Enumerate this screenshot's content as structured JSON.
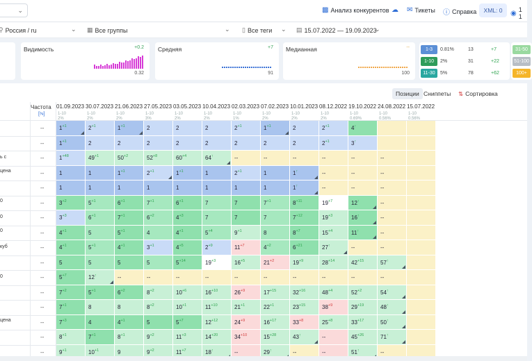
{
  "topbar": {
    "competitor_label": "Анализ конкурентов",
    "tickets_label": "Тикеты",
    "help_label": "Справка",
    "xml_label": "XML: 0",
    "balance_label": "1 1"
  },
  "filters": {
    "region": "Россия / ru",
    "groups": "Все группы",
    "tags": "Все теги",
    "date_range": "15.07.2022 — 19.09.2023"
  },
  "metrics": [
    {
      "title": "Видимость",
      "delta": "+0.2",
      "value": "0.32"
    },
    {
      "title": "Средняя",
      "delta": "+7",
      "value": "91"
    },
    {
      "title": "Медианная",
      "delta": "--",
      "value": "100"
    }
  ],
  "tops": [
    {
      "label": "1-3",
      "pct": "0.81%",
      "count": "13",
      "delta": "+7",
      "color": "#5b8fd6"
    },
    {
      "label": "1-10",
      "pct": "2%",
      "count": "31",
      "delta": "+22",
      "color": "#2e9c5a"
    },
    {
      "label": "11-30",
      "pct": "5%",
      "count": "78",
      "delta": "+62",
      "color": "#2aa7a0"
    }
  ],
  "tops_side": [
    "31-50",
    "51-100",
    "100+"
  ],
  "toolbar": {
    "positions": "Позиции",
    "snippets": "Сниппеты",
    "sort": "Сортировка запросов"
  },
  "table": {
    "freq_header": "Частота",
    "freq_sub": "[!ч]",
    "dates": [
      {
        "d": "01.09.2023",
        "s": [
          "1-10",
          "2%"
        ]
      },
      {
        "d": "30.07.2023",
        "s": [
          "1-10",
          "2%"
        ]
      },
      {
        "d": "21.06.2023",
        "s": [
          "1-10",
          "2%"
        ]
      },
      {
        "d": "27.05.2023",
        "s": [
          "1-10",
          "3%"
        ]
      },
      {
        "d": "03.05.2023",
        "s": [
          "1-10",
          "2%"
        ]
      },
      {
        "d": "10.04.2023",
        "s": [
          "1-10",
          "2%"
        ]
      },
      {
        "d": "02.03.2023",
        "s": [
          "1-10",
          "1%"
        ]
      },
      {
        "d": "07.02.2023",
        "s": [
          "1-10",
          "2%"
        ]
      },
      {
        "d": "10.01.2023",
        "s": [
          "1-10",
          "2%"
        ]
      },
      {
        "d": "08.12.2022",
        "s": [
          "1-10",
          "2%"
        ]
      },
      {
        "d": "19.10.2022",
        "s": [
          "1-10",
          "0.69%"
        ]
      },
      {
        "d": "24.08.2022",
        "s": [
          "1-10",
          "0.56%"
        ]
      },
      {
        "d": "15.07.2022",
        "s": [
          "1-10",
          "0.56%"
        ]
      }
    ],
    "keywords": [
      "",
      "",
      "ь с",
      "цена",
      "",
      "0",
      "0",
      "0",
      "куб",
      "",
      "0",
      "",
      "",
      "цена",
      "",
      ""
    ],
    "rows": [
      [
        [
          "1",
          "+1",
          "b",
          1
        ],
        [
          "2",
          "+1",
          "b",
          0
        ],
        [
          "1",
          "+1",
          "b",
          1
        ],
        [
          "2",
          "",
          "b",
          0
        ],
        [
          "2",
          "",
          "b",
          0
        ],
        [
          "2",
          "",
          "b",
          0
        ],
        [
          "2",
          "+1",
          "b",
          0
        ],
        [
          "1",
          "+1",
          "b",
          1
        ],
        [
          "2",
          "",
          "b",
          0
        ],
        [
          "2",
          "+1",
          "b",
          0
        ],
        [
          "4",
          "↑",
          "g",
          0
        ],
        [
          "",
          "",
          "y",
          0
        ],
        [
          "",
          "",
          "y",
          0
        ]
      ],
      [
        [
          "1",
          "+1",
          "b",
          0
        ],
        [
          "2",
          "",
          "b",
          0
        ],
        [
          "2",
          "",
          "b",
          0
        ],
        [
          "2",
          "",
          "b",
          0
        ],
        [
          "2",
          "",
          "b",
          0
        ],
        [
          "2",
          "",
          "b",
          0
        ],
        [
          "2",
          "",
          "b",
          0
        ],
        [
          "2",
          "",
          "b",
          0
        ],
        [
          "2",
          "",
          "b",
          0
        ],
        [
          "2",
          "+1",
          "b",
          0
        ],
        [
          "3",
          "↑",
          "b",
          0
        ],
        [
          "",
          "",
          "y",
          0
        ],
        [
          "",
          "",
          "y",
          0
        ]
      ],
      [
        [
          "1",
          "+48",
          "b",
          0
        ],
        [
          "49",
          "+1",
          "l",
          0
        ],
        [
          "50",
          "+2",
          "l",
          0
        ],
        [
          "52",
          "+8",
          "l",
          0
        ],
        [
          "60",
          "+4",
          "l",
          0
        ],
        [
          "64",
          "↑",
          "l",
          1
        ],
        [
          "--",
          "",
          "y",
          0
        ],
        [
          "--",
          "",
          "y",
          0
        ],
        [
          "--",
          "",
          "y",
          0
        ],
        [
          "--",
          "",
          "y",
          0
        ],
        [
          "--",
          "",
          "y",
          0
        ],
        [
          "--",
          "",
          "y",
          0
        ],
        [
          "",
          "",
          "y",
          0
        ]
      ],
      [
        [
          "1",
          "",
          "b",
          0
        ],
        [
          "1",
          "",
          "b",
          0
        ],
        [
          "1",
          "+1",
          "b",
          0
        ],
        [
          "2",
          "+1",
          "b",
          1
        ],
        [
          "1",
          "+1",
          "b",
          0
        ],
        [
          "1",
          "",
          "b",
          0
        ],
        [
          "2",
          "+1",
          "b",
          0
        ],
        [
          "1",
          "",
          "b",
          0
        ],
        [
          "1",
          "↑",
          "b",
          1
        ],
        [
          "--",
          "",
          "y",
          0
        ],
        [
          "--",
          "",
          "y",
          0
        ],
        [
          "--",
          "",
          "y",
          0
        ],
        [
          "",
          "",
          "y",
          0
        ]
      ],
      [
        [
          "1",
          "",
          "b",
          0
        ],
        [
          "1",
          "",
          "b",
          0
        ],
        [
          "1",
          "",
          "b",
          0
        ],
        [
          "1",
          "",
          "b",
          0
        ],
        [
          "1",
          "",
          "b",
          0
        ],
        [
          "1",
          "",
          "b",
          0
        ],
        [
          "1",
          "",
          "b",
          0
        ],
        [
          "1",
          "",
          "b",
          0
        ],
        [
          "1",
          "↑",
          "b",
          1
        ],
        [
          "--",
          "",
          "y",
          0
        ],
        [
          "--",
          "",
          "y",
          0
        ],
        [
          "--",
          "",
          "y",
          0
        ],
        [
          "",
          "",
          "y",
          0
        ]
      ],
      [
        [
          "3",
          "+2",
          "g",
          0
        ],
        [
          "5",
          "+1",
          "g",
          0
        ],
        [
          "6",
          "+1",
          "g",
          0
        ],
        [
          "7",
          "+1",
          "g",
          0
        ],
        [
          "6",
          "+1",
          "g",
          0
        ],
        [
          "7",
          "",
          "g",
          0
        ],
        [
          "7",
          "",
          "g",
          0
        ],
        [
          "7",
          "+1",
          "g",
          0
        ],
        [
          "8",
          "+11",
          "g",
          0
        ],
        [
          "19",
          "+7",
          "w",
          0
        ],
        [
          "12",
          "↑",
          "g",
          1
        ],
        [
          "--",
          "",
          "y",
          0
        ],
        [
          "",
          "",
          "y",
          0
        ]
      ],
      [
        [
          "3",
          "+3",
          "b",
          0
        ],
        [
          "6",
          "+1",
          "g",
          0
        ],
        [
          "7",
          "+1",
          "g",
          0
        ],
        [
          "6",
          "+2",
          "g",
          0
        ],
        [
          "4",
          "+3",
          "g",
          0
        ],
        [
          "7",
          "",
          "g",
          0
        ],
        [
          "7",
          "",
          "g",
          0
        ],
        [
          "7",
          "",
          "g",
          0
        ],
        [
          "7",
          "+12",
          "g",
          0
        ],
        [
          "19",
          "+3",
          "l",
          0
        ],
        [
          "16",
          "↑",
          "g",
          1
        ],
        [
          "--",
          "",
          "y",
          0
        ],
        [
          "",
          "",
          "y",
          0
        ]
      ],
      [
        [
          "4",
          "+1",
          "g",
          0
        ],
        [
          "5",
          "",
          "g",
          0
        ],
        [
          "5",
          "+1",
          "g",
          0
        ],
        [
          "4",
          "",
          "g",
          0
        ],
        [
          "4",
          "+1",
          "g",
          0
        ],
        [
          "5",
          "+4",
          "g",
          0
        ],
        [
          "9",
          "+1",
          "l",
          0
        ],
        [
          "8",
          "",
          "g",
          0
        ],
        [
          "8",
          "+7",
          "g",
          0
        ],
        [
          "15",
          "+4",
          "l",
          0
        ],
        [
          "11",
          "↑",
          "g",
          1
        ],
        [
          "--",
          "",
          "y",
          0
        ],
        [
          "",
          "",
          "y",
          0
        ]
      ],
      [
        [
          "4",
          "+1",
          "g",
          0
        ],
        [
          "5",
          "+1",
          "g",
          0
        ],
        [
          "4",
          "+1",
          "g",
          0
        ],
        [
          "3",
          "+1",
          "b",
          0
        ],
        [
          "4",
          "+5",
          "g",
          0
        ],
        [
          "2",
          "+9",
          "b",
          0
        ],
        [
          "11",
          "+7",
          "r",
          0
        ],
        [
          "4",
          "+2",
          "g",
          0
        ],
        [
          "6",
          "+21",
          "g",
          0
        ],
        [
          "27",
          "↑",
          "l",
          1
        ],
        [
          "--",
          "",
          "y",
          0
        ],
        [
          "--",
          "",
          "y",
          0
        ],
        [
          "",
          "",
          "y",
          0
        ]
      ],
      [
        [
          "5",
          "",
          "g",
          0
        ],
        [
          "5",
          "",
          "g",
          0
        ],
        [
          "5",
          "",
          "g",
          0
        ],
        [
          "5",
          "",
          "g",
          0
        ],
        [
          "5",
          "+14",
          "g",
          0
        ],
        [
          "19",
          "+3",
          "w",
          0
        ],
        [
          "16",
          "+5",
          "l",
          0
        ],
        [
          "21",
          "+2",
          "r",
          0
        ],
        [
          "19",
          "+9",
          "l",
          0
        ],
        [
          "28",
          "+14",
          "l",
          0
        ],
        [
          "42",
          "+15",
          "l",
          0
        ],
        [
          "57",
          "↑",
          "l",
          1
        ],
        [
          "",
          "",
          "y",
          0
        ]
      ],
      [
        [
          "5",
          "+7",
          "g",
          0
        ],
        [
          "12",
          "↑",
          "l",
          1
        ],
        [
          "--",
          "",
          "y",
          0
        ],
        [
          "--",
          "",
          "y",
          0
        ],
        [
          "--",
          "",
          "y",
          0
        ],
        [
          "--",
          "",
          "y",
          0
        ],
        [
          "--",
          "",
          "y",
          0
        ],
        [
          "--",
          "",
          "y",
          0
        ],
        [
          "--",
          "",
          "y",
          0
        ],
        [
          "--",
          "",
          "y",
          0
        ],
        [
          "--",
          "",
          "y",
          0
        ],
        [
          "--",
          "",
          "y",
          0
        ],
        [
          "",
          "",
          "y",
          0
        ]
      ],
      [
        [
          "7",
          "+2",
          "g",
          0
        ],
        [
          "5",
          "+1",
          "g",
          0
        ],
        [
          "6",
          "+2",
          "g",
          0
        ],
        [
          "8",
          "+2",
          "l",
          0
        ],
        [
          "10",
          "+6",
          "l",
          0
        ],
        [
          "16",
          "+10",
          "l",
          0
        ],
        [
          "26",
          "+9",
          "r",
          0
        ],
        [
          "17",
          "+15",
          "l",
          0
        ],
        [
          "32",
          "+16",
          "l",
          0
        ],
        [
          "48",
          "+4",
          "l",
          0
        ],
        [
          "52",
          "+2",
          "l",
          0
        ],
        [
          "54",
          "↑",
          "l",
          1
        ],
        [
          "",
          "",
          "y",
          0
        ]
      ],
      [
        [
          "7",
          "+1",
          "g",
          0
        ],
        [
          "8",
          "",
          "l",
          0
        ],
        [
          "8",
          "",
          "l",
          0
        ],
        [
          "8",
          "+2",
          "l",
          0
        ],
        [
          "10",
          "+1",
          "l",
          0
        ],
        [
          "11",
          "+10",
          "l",
          0
        ],
        [
          "21",
          "+1",
          "l",
          0
        ],
        [
          "22",
          "+1",
          "l",
          0
        ],
        [
          "23",
          "+15",
          "l",
          0
        ],
        [
          "38",
          "+9",
          "r",
          0
        ],
        [
          "29",
          "+19",
          "l",
          0
        ],
        [
          "48",
          "↑",
          "l",
          1
        ],
        [
          "",
          "",
          "y",
          0
        ]
      ],
      [
        [
          "7",
          "+3",
          "g",
          0
        ],
        [
          "4",
          "",
          "g",
          0
        ],
        [
          "4",
          "+1",
          "g",
          0
        ],
        [
          "5",
          "",
          "g",
          0
        ],
        [
          "5",
          "+7",
          "g",
          0
        ],
        [
          "12",
          "+12",
          "l",
          0
        ],
        [
          "24",
          "+9",
          "r",
          0
        ],
        [
          "16",
          "+17",
          "l",
          0
        ],
        [
          "33",
          "+8",
          "r",
          0
        ],
        [
          "25",
          "+8",
          "l",
          0
        ],
        [
          "33",
          "+17",
          "l",
          0
        ],
        [
          "50",
          "↑",
          "l",
          1
        ],
        [
          "",
          "",
          "y",
          0
        ]
      ],
      [
        [
          "8",
          "+1",
          "l",
          0
        ],
        [
          "7",
          "+1",
          "g",
          0
        ],
        [
          "8",
          "+1",
          "l",
          0
        ],
        [
          "9",
          "+2",
          "l",
          0
        ],
        [
          "11",
          "+3",
          "l",
          0
        ],
        [
          "14",
          "+20",
          "l",
          0
        ],
        [
          "34",
          "+10",
          "r",
          0
        ],
        [
          "15",
          "+28",
          "l",
          0
        ],
        [
          "43",
          "↑",
          "l",
          1
        ],
        [
          "--",
          "",
          "r",
          0
        ],
        [
          "45",
          "+26",
          "l",
          0
        ],
        [
          "71",
          "↑",
          "l",
          1
        ],
        [
          "",
          "",
          "y",
          0
        ]
      ],
      [
        [
          "9",
          "+1",
          "l",
          0
        ],
        [
          "10",
          "+1",
          "l",
          0
        ],
        [
          "9",
          "",
          "l",
          0
        ],
        [
          "9",
          "+2",
          "l",
          0
        ],
        [
          "11",
          "+7",
          "l",
          0
        ],
        [
          "18",
          "↑",
          "l",
          1
        ],
        [
          "--",
          "",
          "r",
          0
        ],
        [
          "29",
          "↑",
          "l",
          1
        ],
        [
          "--",
          "",
          "y",
          0
        ],
        [
          "--",
          "",
          "r",
          0
        ],
        [
          "51",
          "↑",
          "l",
          1
        ],
        [
          "--",
          "",
          "y",
          0
        ],
        [
          "",
          "",
          "y",
          0
        ]
      ]
    ]
  },
  "colors": {
    "blue_strong": "#a9c4ee",
    "blue_light": "#c9dbf7",
    "green_strong": "#8fe0ad",
    "green_light": "#c8f0d6",
    "yellow": "#fbf1c7",
    "red_light": "#fbdada",
    "white": "#ffffff"
  }
}
